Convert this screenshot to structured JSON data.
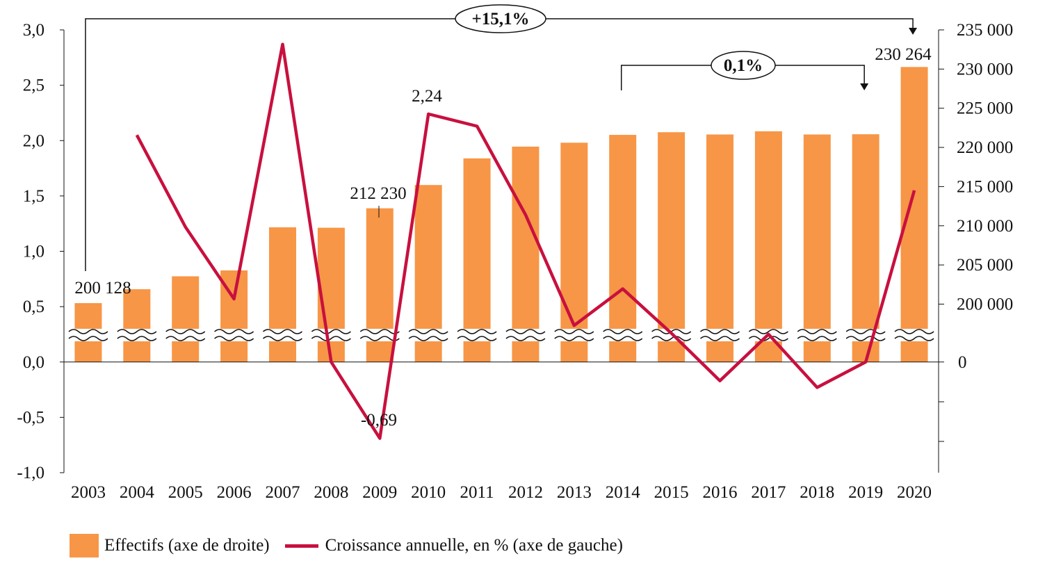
{
  "chart_data": {
    "type": "bar+line",
    "categories": [
      "2003",
      "2004",
      "2005",
      "2006",
      "2007",
      "2008",
      "2009",
      "2010",
      "2011",
      "2012",
      "2013",
      "2014",
      "2015",
      "2016",
      "2017",
      "2018",
      "2019",
      "2020"
    ],
    "series": [
      {
        "name": "Effectifs (axe de droite)",
        "type": "bar",
        "axis": "right",
        "color": "#F79646",
        "values": [
          200128,
          201900,
          203550,
          204300,
          209800,
          209750,
          212230,
          215200,
          218600,
          220100,
          220600,
          221600,
          221940,
          221650,
          222060,
          221650,
          221680,
          230264
        ]
      },
      {
        "name": "Croissance annuelle, en % (axe de gauche)",
        "type": "line",
        "axis": "left",
        "color": "#C8103E",
        "values": [
          null,
          2.05,
          1.22,
          0.57,
          2.87,
          0.0,
          -0.69,
          2.24,
          2.13,
          1.33,
          0.33,
          0.66,
          0.26,
          -0.17,
          0.25,
          -0.23,
          0.0,
          1.55
        ]
      }
    ],
    "left_axis": {
      "ylim": [
        -1.0,
        3.0
      ],
      "ticks": [
        "3,0",
        "2,5",
        "2,0",
        "1,5",
        "1,0",
        "0,5",
        "0,0",
        "-0,5",
        "-1,0"
      ]
    },
    "right_axis": {
      "ticks": [
        "235 000",
        "230 000",
        "225 000",
        "220 000",
        "215 000",
        "210 000",
        "205 000",
        "200 000",
        "0"
      ],
      "broken": true
    },
    "data_labels": [
      {
        "text": "200 128",
        "category": "2003"
      },
      {
        "text": "212 230",
        "category": "2009"
      },
      {
        "text": "230 264",
        "category": "2020"
      },
      {
        "text": "2,24",
        "category": "2010"
      },
      {
        "text": "-0,69",
        "category": "2009"
      }
    ],
    "annotations": [
      {
        "text": "+15,1%",
        "from": "2003",
        "to": "2020"
      },
      {
        "text": "0,1%",
        "from": "2014",
        "to": "2019"
      }
    ],
    "legend": {
      "position": "bottom-left",
      "items": [
        "Effectifs (axe de droite)",
        "Croissance annuelle, en % (axe de gauche)"
      ]
    }
  }
}
